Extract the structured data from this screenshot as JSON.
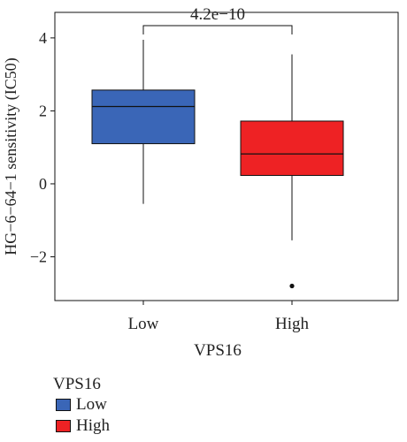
{
  "chart_data": {
    "type": "boxplot",
    "title": "",
    "xlabel": "VPS16",
    "ylabel": "HG−6−64−1 sensitivity (IC50)",
    "ylim": [
      -3.2,
      4.7
    ],
    "yticks": [
      "4",
      "2",
      "0",
      "−2"
    ],
    "ytick_values": [
      4,
      2,
      0,
      -2
    ],
    "categories": [
      "Low",
      "High"
    ],
    "boxes": [
      {
        "name": "Low",
        "color": "#3a66b7",
        "whisker_low": -0.55,
        "q1": 1.1,
        "median": 2.12,
        "q3": 2.57,
        "whisker_high": 3.95,
        "outliers": []
      },
      {
        "name": "High",
        "color": "#ee2224",
        "whisker_low": -1.55,
        "q1": 0.23,
        "median": 0.82,
        "q3": 1.72,
        "whisker_high": 3.55,
        "outliers": [
          -2.8
        ]
      }
    ],
    "annotation": {
      "text": "4.2e−10",
      "between": [
        "Low",
        "High"
      ]
    },
    "legend": {
      "title": "VPS16",
      "position": "bottom-left",
      "entries": [
        {
          "label": "Low",
          "color": "#3a66b7"
        },
        {
          "label": "High",
          "color": "#ee2224"
        }
      ]
    }
  }
}
